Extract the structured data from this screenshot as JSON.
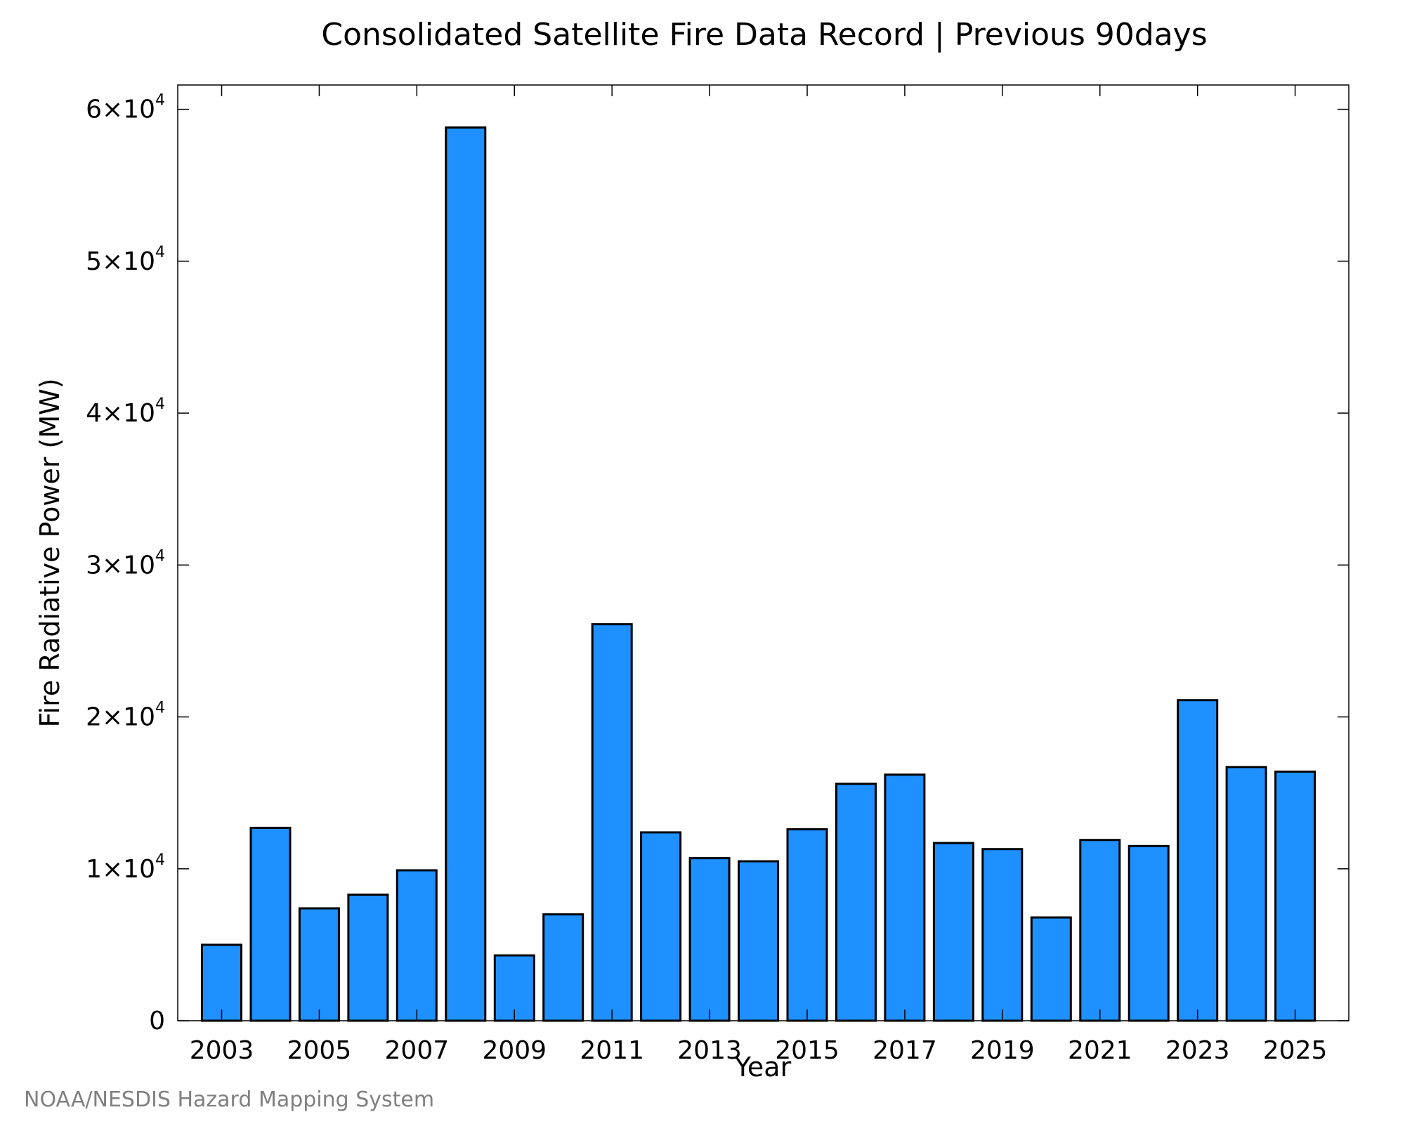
{
  "chart_data": {
    "type": "bar",
    "title": "Consolidated Satellite Fire Data Record | Previous 90days",
    "xlabel": "Year",
    "ylabel": "Fire Radiative Power (MW)",
    "categories": [
      "2003",
      "2004",
      "2005",
      "2006",
      "2007",
      "2008",
      "2009",
      "2010",
      "2011",
      "2012",
      "2013",
      "2014",
      "2015",
      "2016",
      "2017",
      "2018",
      "2019",
      "2020",
      "2021",
      "2022",
      "2023",
      "2024",
      "2025"
    ],
    "values": [
      5000,
      12700,
      7400,
      8300,
      9900,
      58800,
      4300,
      7000,
      26100,
      12400,
      10700,
      10500,
      12600,
      15600,
      16200,
      11700,
      11300,
      6800,
      11900,
      11500,
      21100,
      16700,
      16400
    ],
    "x_tick_labels": [
      "2003",
      "2005",
      "2007",
      "2009",
      "2011",
      "2013",
      "2015",
      "2017",
      "2019",
      "2021",
      "2023",
      "2025"
    ],
    "y_ticks": [
      {
        "value": 0,
        "label": "0",
        "mantissa": "",
        "exponent": ""
      },
      {
        "value": 10000,
        "label": "1×10",
        "mantissa": "1×10",
        "exponent": "4"
      },
      {
        "value": 20000,
        "label": "2×10",
        "mantissa": "2×10",
        "exponent": "4"
      },
      {
        "value": 30000,
        "label": "3×10",
        "mantissa": "3×10",
        "exponent": "4"
      },
      {
        "value": 40000,
        "label": "4×10",
        "mantissa": "4×10",
        "exponent": "4"
      },
      {
        "value": 50000,
        "label": "5×10",
        "mantissa": "5×10",
        "exponent": "4"
      },
      {
        "value": 60000,
        "label": "6×10",
        "mantissa": "6×10",
        "exponent": "4"
      }
    ],
    "ylim": [
      0,
      61600
    ],
    "xlim": [
      2002.1,
      2026.1
    ],
    "grid": false,
    "legend": "none",
    "bar_color": "#1e90ff",
    "bar_edge_color": "#000000"
  },
  "credit": "NOAA/NESDIS Hazard Mapping System"
}
